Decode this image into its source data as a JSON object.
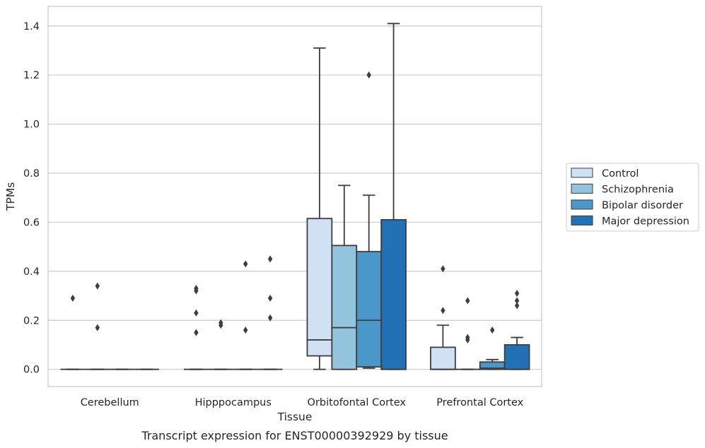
{
  "caption": "Transcript expression for ENST00000392929 by tissue",
  "chart_data": {
    "type": "box",
    "xlabel": "Tissue",
    "ylabel": "TPMs",
    "ylim": [
      -0.07,
      1.48
    ],
    "yticks": [
      0.0,
      0.2,
      0.4,
      0.6,
      0.8,
      1.0,
      1.2,
      1.4
    ],
    "ytick_labels": [
      "0.0",
      "0.2",
      "0.4",
      "0.6",
      "0.8",
      "1.0",
      "1.2",
      "1.4"
    ],
    "grid": true,
    "legend_position": "right",
    "categories": [
      "Cerebellum",
      "Hipppocampus",
      "Orbitofontal Cortex",
      "Prefrontal Cortex"
    ],
    "series": [
      {
        "name": "Control",
        "color": "#cfe1f2",
        "boxes": [
          {
            "q1": 0,
            "median": 0,
            "q3": 0,
            "whislo": 0,
            "whishi": 0,
            "fliers": [
              0.29
            ]
          },
          {
            "q1": 0,
            "median": 0,
            "q3": 0,
            "whislo": 0,
            "whishi": 0,
            "fliers": [
              0.33,
              0.32,
              0.23,
              0.15
            ]
          },
          {
            "q1": 0.055,
            "median": 0.12,
            "q3": 0.615,
            "whislo": 0,
            "whishi": 1.31,
            "fliers": []
          },
          {
            "q1": 0,
            "median": 0,
            "q3": 0.09,
            "whislo": 0,
            "whishi": 0.18,
            "fliers": [
              0.41,
              0.24
            ]
          }
        ]
      },
      {
        "name": "Schizophrenia",
        "color": "#93c4de",
        "boxes": [
          {
            "q1": 0,
            "median": 0,
            "q3": 0,
            "whislo": 0,
            "whishi": 0,
            "fliers": [
              0.34,
              0.17
            ]
          },
          {
            "q1": 0,
            "median": 0,
            "q3": 0,
            "whislo": 0,
            "whishi": 0,
            "fliers": [
              0.19,
              0.18
            ]
          },
          {
            "q1": 0,
            "median": 0.17,
            "q3": 0.505,
            "whislo": 0,
            "whishi": 0.75,
            "fliers": []
          },
          {
            "q1": 0,
            "median": 0,
            "q3": 0,
            "whislo": 0,
            "whishi": 0,
            "fliers": [
              0.28,
              0.13,
              0.12
            ]
          }
        ]
      },
      {
        "name": "Bipolar disorder",
        "color": "#4a98c9",
        "boxes": [
          {
            "q1": 0,
            "median": 0,
            "q3": 0,
            "whislo": 0,
            "whishi": 0,
            "fliers": []
          },
          {
            "q1": 0,
            "median": 0,
            "q3": 0,
            "whislo": 0,
            "whishi": 0,
            "fliers": [
              0.43,
              0.16
            ]
          },
          {
            "q1": 0.01,
            "median": 0.2,
            "q3": 0.48,
            "whislo": 0.005,
            "whishi": 0.71,
            "fliers": [
              1.2
            ]
          },
          {
            "q1": 0,
            "median": 0.005,
            "q3": 0.03,
            "whislo": 0,
            "whishi": 0.04,
            "fliers": [
              0.16
            ]
          }
        ]
      },
      {
        "name": "Major depression",
        "color": "#2271b5",
        "boxes": [
          {
            "q1": 0,
            "median": 0,
            "q3": 0,
            "whislo": 0,
            "whishi": 0,
            "fliers": []
          },
          {
            "q1": 0,
            "median": 0,
            "q3": 0,
            "whislo": 0,
            "whishi": 0,
            "fliers": [
              0.45,
              0.29,
              0.21
            ]
          },
          {
            "q1": 0,
            "median": 0,
            "q3": 0.61,
            "whislo": 0,
            "whishi": 1.41,
            "fliers": []
          },
          {
            "q1": 0,
            "median": 0,
            "q3": 0.1,
            "whislo": 0,
            "whishi": 0.13,
            "fliers": [
              0.31,
              0.28,
              0.26
            ]
          }
        ]
      }
    ]
  }
}
